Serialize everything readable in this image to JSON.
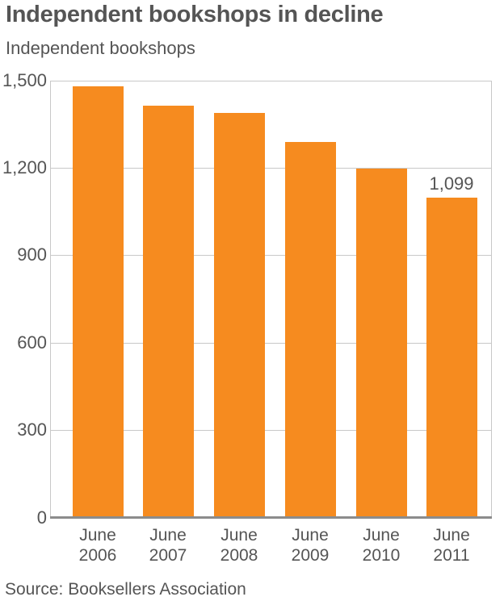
{
  "title": "Independent bookshops in decline",
  "subtitle": "Independent bookshops",
  "source": "Source: Booksellers Association",
  "colors": {
    "bar": "#f68b1f",
    "grid": "#c8c8c8",
    "text": "#555555"
  },
  "yticks": [
    "1,500",
    "1,200",
    "900",
    "600",
    "300",
    "0"
  ],
  "xlabels": [
    {
      "line1": "June",
      "line2": "2006"
    },
    {
      "line1": "June",
      "line2": "2007"
    },
    {
      "line1": "June",
      "line2": "2008"
    },
    {
      "line1": "June",
      "line2": "2009"
    },
    {
      "line1": "June",
      "line2": "2010"
    },
    {
      "line1": "June",
      "line2": "2011"
    }
  ],
  "annotation": "1,099",
  "chart_data": {
    "type": "bar",
    "title": "Independent bookshops in decline",
    "subtitle": "Independent bookshops",
    "categories": [
      "June 2006",
      "June 2007",
      "June 2008",
      "June 2009",
      "June 2010",
      "June 2011"
    ],
    "values": [
      1480,
      1414,
      1389,
      1288,
      1198,
      1099
    ],
    "xlabel": "",
    "ylabel": "Independent bookshops",
    "ylim": [
      0,
      1500
    ],
    "yticks": [
      0,
      300,
      600,
      900,
      1200,
      1500
    ],
    "grid": true,
    "legend": null,
    "annotations": [
      {
        "category": "June 2011",
        "text": "1,099"
      }
    ],
    "source": "Source: Booksellers Association"
  }
}
